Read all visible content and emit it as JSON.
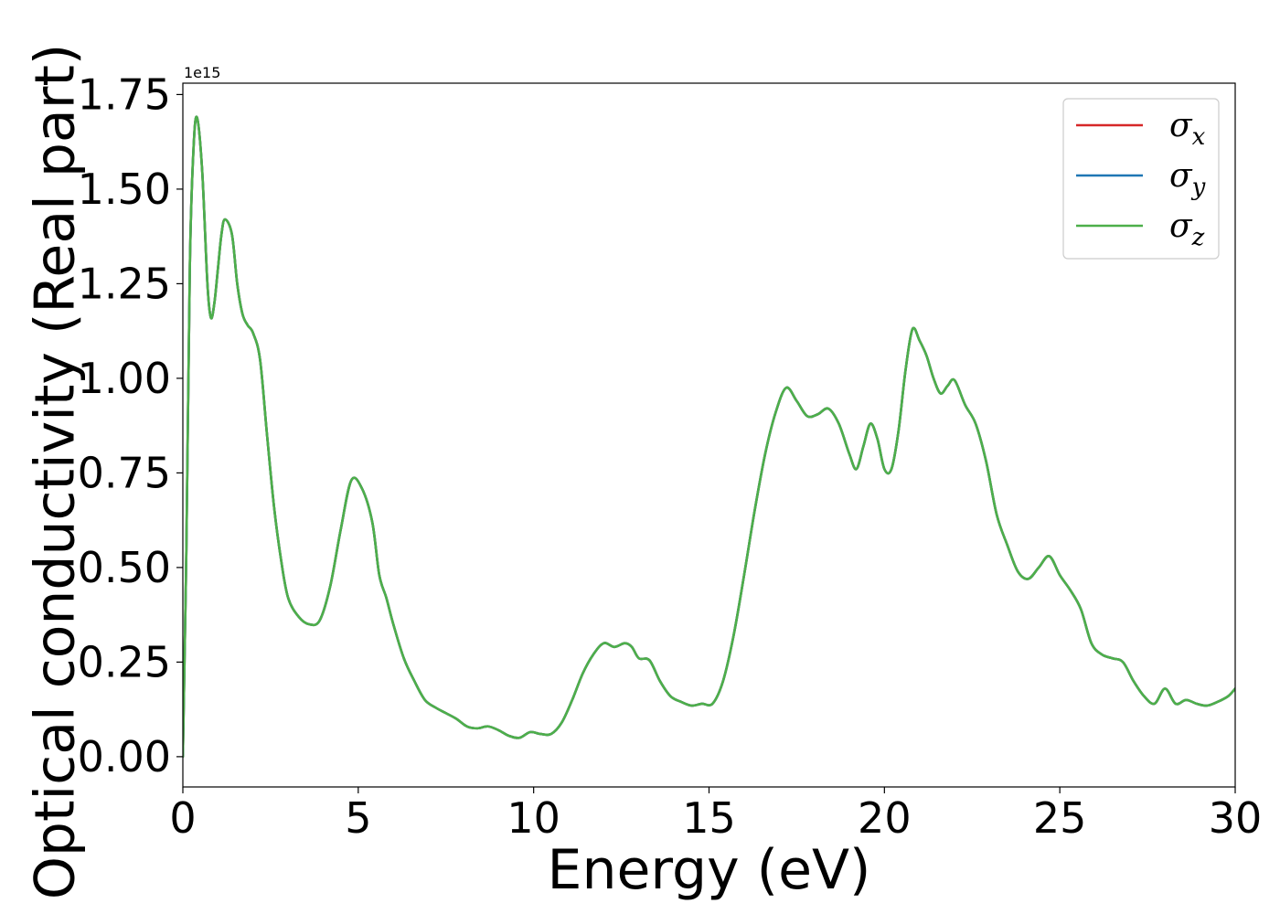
{
  "chart_data": {
    "type": "line",
    "xlabel": "Energy (eV)",
    "ylabel": "Optical conductivity (Real part)",
    "y_offset_label": "1e15",
    "y_scale_factor": 1000000000000000.0,
    "xlim": [
      0,
      30
    ],
    "ylim": [
      -0.08,
      1.78
    ],
    "xticks": [
      0,
      5,
      10,
      15,
      20,
      25,
      30
    ],
    "yticks": [
      0.0,
      0.25,
      0.5,
      0.75,
      1.0,
      1.25,
      1.5,
      1.75
    ],
    "ytick_labels": [
      "0.00",
      "0.25",
      "0.50",
      "0.75",
      "1.00",
      "1.25",
      "1.50",
      "1.75"
    ],
    "grid": false,
    "legend_position": "top-right",
    "x": [
      0,
      0.1,
      0.2,
      0.3,
      0.4,
      0.55,
      0.7,
      0.8,
      0.9,
      1.0,
      1.1,
      1.2,
      1.4,
      1.55,
      1.7,
      1.85,
      2.0,
      2.2,
      2.4,
      2.6,
      2.8,
      3.0,
      3.3,
      3.6,
      3.9,
      4.2,
      4.5,
      4.8,
      5.1,
      5.4,
      5.6,
      5.8,
      6.0,
      6.3,
      6.6,
      6.9,
      7.2,
      7.5,
      7.8,
      8.1,
      8.4,
      8.7,
      9.0,
      9.3,
      9.6,
      9.9,
      10.2,
      10.5,
      10.8,
      11.1,
      11.4,
      11.7,
      12.0,
      12.3,
      12.6,
      12.8,
      13.0,
      13.3,
      13.6,
      13.9,
      14.2,
      14.5,
      14.8,
      15.1,
      15.4,
      15.7,
      16.0,
      16.3,
      16.6,
      16.9,
      17.2,
      17.5,
      17.8,
      18.1,
      18.4,
      18.7,
      19.0,
      19.2,
      19.4,
      19.6,
      19.8,
      20.0,
      20.2,
      20.4,
      20.6,
      20.8,
      21.0,
      21.2,
      21.4,
      21.6,
      21.8,
      22.0,
      22.3,
      22.6,
      22.9,
      23.2,
      23.5,
      23.8,
      24.1,
      24.4,
      24.7,
      25.0,
      25.3,
      25.6,
      25.9,
      26.2,
      26.5,
      26.8,
      27.1,
      27.4,
      27.7,
      28.0,
      28.3,
      28.6,
      28.9,
      29.2,
      29.5,
      29.8,
      30.0
    ],
    "series": [
      {
        "name": "σx",
        "name_base": "σ",
        "name_sub": "x",
        "color": "#d62728",
        "values": [
          0.0,
          0.55,
          1.3,
          1.6,
          1.69,
          1.55,
          1.25,
          1.16,
          1.2,
          1.29,
          1.38,
          1.42,
          1.38,
          1.25,
          1.17,
          1.14,
          1.12,
          1.05,
          0.85,
          0.66,
          0.52,
          0.42,
          0.37,
          0.35,
          0.36,
          0.45,
          0.6,
          0.73,
          0.71,
          0.62,
          0.48,
          0.42,
          0.35,
          0.26,
          0.2,
          0.15,
          0.13,
          0.115,
          0.1,
          0.08,
          0.075,
          0.08,
          0.07,
          0.055,
          0.05,
          0.065,
          0.06,
          0.06,
          0.09,
          0.15,
          0.22,
          0.27,
          0.3,
          0.29,
          0.3,
          0.29,
          0.26,
          0.255,
          0.2,
          0.16,
          0.145,
          0.135,
          0.14,
          0.14,
          0.2,
          0.32,
          0.48,
          0.65,
          0.8,
          0.91,
          0.975,
          0.94,
          0.9,
          0.905,
          0.92,
          0.88,
          0.8,
          0.76,
          0.82,
          0.88,
          0.84,
          0.76,
          0.76,
          0.86,
          1.02,
          1.13,
          1.1,
          1.06,
          1.0,
          0.96,
          0.98,
          0.995,
          0.93,
          0.88,
          0.78,
          0.64,
          0.56,
          0.49,
          0.47,
          0.5,
          0.53,
          0.48,
          0.44,
          0.39,
          0.3,
          0.27,
          0.26,
          0.25,
          0.2,
          0.16,
          0.14,
          0.18,
          0.14,
          0.15,
          0.14,
          0.135,
          0.145,
          0.16,
          0.18
        ]
      },
      {
        "name": "σy",
        "name_base": "σ",
        "name_sub": "y",
        "color": "#1f77b4",
        "values": [
          0.0,
          0.55,
          1.3,
          1.6,
          1.69,
          1.55,
          1.25,
          1.16,
          1.2,
          1.29,
          1.38,
          1.42,
          1.38,
          1.25,
          1.17,
          1.14,
          1.12,
          1.05,
          0.85,
          0.66,
          0.52,
          0.42,
          0.37,
          0.35,
          0.36,
          0.45,
          0.6,
          0.73,
          0.71,
          0.62,
          0.48,
          0.42,
          0.35,
          0.26,
          0.2,
          0.15,
          0.13,
          0.115,
          0.1,
          0.08,
          0.075,
          0.08,
          0.07,
          0.055,
          0.05,
          0.065,
          0.06,
          0.06,
          0.09,
          0.15,
          0.22,
          0.27,
          0.3,
          0.29,
          0.3,
          0.29,
          0.26,
          0.255,
          0.2,
          0.16,
          0.145,
          0.135,
          0.14,
          0.14,
          0.2,
          0.32,
          0.48,
          0.65,
          0.8,
          0.91,
          0.975,
          0.94,
          0.9,
          0.905,
          0.92,
          0.88,
          0.8,
          0.76,
          0.82,
          0.88,
          0.84,
          0.76,
          0.76,
          0.86,
          1.02,
          1.13,
          1.1,
          1.06,
          1.0,
          0.96,
          0.98,
          0.995,
          0.93,
          0.88,
          0.78,
          0.64,
          0.56,
          0.49,
          0.47,
          0.5,
          0.53,
          0.48,
          0.44,
          0.39,
          0.3,
          0.27,
          0.26,
          0.25,
          0.2,
          0.16,
          0.14,
          0.18,
          0.14,
          0.15,
          0.14,
          0.135,
          0.145,
          0.16,
          0.18
        ]
      },
      {
        "name": "σz",
        "name_base": "σ",
        "name_sub": "z",
        "color": "#4daf4a",
        "values": [
          0.0,
          0.55,
          1.3,
          1.6,
          1.69,
          1.55,
          1.25,
          1.16,
          1.2,
          1.29,
          1.38,
          1.42,
          1.38,
          1.25,
          1.17,
          1.14,
          1.12,
          1.05,
          0.85,
          0.66,
          0.52,
          0.42,
          0.37,
          0.35,
          0.36,
          0.45,
          0.6,
          0.73,
          0.71,
          0.62,
          0.48,
          0.42,
          0.35,
          0.26,
          0.2,
          0.15,
          0.13,
          0.115,
          0.1,
          0.08,
          0.075,
          0.08,
          0.07,
          0.055,
          0.05,
          0.065,
          0.06,
          0.06,
          0.09,
          0.15,
          0.22,
          0.27,
          0.3,
          0.29,
          0.3,
          0.29,
          0.26,
          0.255,
          0.2,
          0.16,
          0.145,
          0.135,
          0.14,
          0.14,
          0.2,
          0.32,
          0.48,
          0.65,
          0.8,
          0.91,
          0.975,
          0.94,
          0.9,
          0.905,
          0.92,
          0.88,
          0.8,
          0.76,
          0.82,
          0.88,
          0.84,
          0.76,
          0.76,
          0.86,
          1.02,
          1.13,
          1.1,
          1.06,
          1.0,
          0.96,
          0.98,
          0.995,
          0.93,
          0.88,
          0.78,
          0.64,
          0.56,
          0.49,
          0.47,
          0.5,
          0.53,
          0.48,
          0.44,
          0.39,
          0.3,
          0.27,
          0.26,
          0.25,
          0.2,
          0.16,
          0.14,
          0.18,
          0.14,
          0.15,
          0.14,
          0.135,
          0.145,
          0.16,
          0.18
        ]
      }
    ]
  }
}
